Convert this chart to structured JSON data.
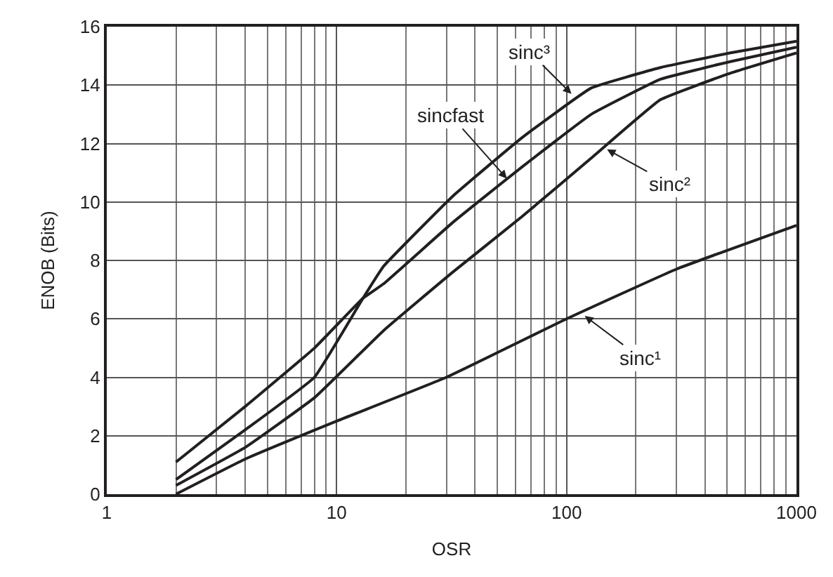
{
  "chart_data": {
    "type": "line",
    "xlabel": "OSR",
    "ylabel": "ENOB (Bits)",
    "log": "x",
    "grid": true,
    "marker": "none",
    "line_style": "solid",
    "xlim": [
      1,
      1000
    ],
    "xticks": [
      1,
      10,
      100,
      1000
    ],
    "ylim": [
      0,
      16
    ],
    "yticks": [
      0,
      2,
      4,
      6,
      8,
      10,
      12,
      14,
      16
    ],
    "series": [
      {
        "color": "#231f20",
        "x": [
          2,
          4,
          10,
          30,
          100,
          300,
          1000
        ],
        "values": [
          0,
          1.2,
          2.5,
          4,
          6,
          7.7,
          9.2
        ]
      },
      {
        "color": "#231f20",
        "x": [
          2,
          4,
          8,
          16,
          32,
          64,
          128,
          256,
          512,
          1000
        ],
        "values": [
          0.3,
          1.6,
          3.3,
          5.6,
          7.6,
          9.5,
          11.5,
          13.5,
          14.4,
          15.1
        ]
      },
      {
        "color": "#231f20",
        "x": [
          2,
          4,
          8,
          13,
          16,
          32,
          64,
          128,
          256,
          512,
          1000
        ],
        "values": [
          0.5,
          2.2,
          4.0,
          6.7,
          7.8,
          10.2,
          12.2,
          13.9,
          14.6,
          15.1,
          15.5
        ]
      },
      {
        "color": "#231f20",
        "x": [
          2,
          4,
          8,
          13,
          16,
          32,
          64,
          128,
          256,
          512,
          1000
        ],
        "values": [
          1.1,
          3.0,
          5.0,
          6.7,
          7.2,
          9.3,
          11.2,
          13.0,
          14.2,
          14.8,
          15.3
        ]
      }
    ],
    "annotations": [
      {
        "text": "sinc¹",
        "x": 120,
        "y": 6.1
      },
      {
        "text": "sinc²",
        "x": 150,
        "y": 11.8
      },
      {
        "text": "sinc³",
        "x": 105,
        "y": 13.7
      },
      {
        "text": "sincfast",
        "x": 55,
        "y": 10.8
      }
    ]
  }
}
